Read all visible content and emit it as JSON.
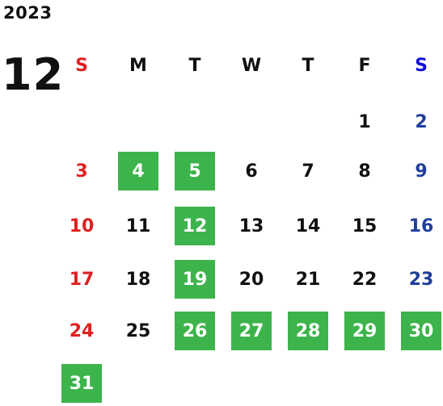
{
  "calendar": {
    "year": "2023",
    "month": "12",
    "weekday_headers": [
      "S",
      "M",
      "T",
      "W",
      "T",
      "F",
      "S"
    ],
    "highlight_color": "#3cb44b",
    "sunday_color": "#e02020",
    "saturday_color": "#1f3f9a",
    "weeks": [
      [
        null,
        null,
        null,
        null,
        null,
        {
          "day": "1",
          "hl": false
        },
        {
          "day": "2",
          "hl": false
        }
      ],
      [
        {
          "day": "3",
          "hl": false
        },
        {
          "day": "4",
          "hl": true
        },
        {
          "day": "5",
          "hl": true
        },
        {
          "day": "6",
          "hl": false
        },
        {
          "day": "7",
          "hl": false
        },
        {
          "day": "8",
          "hl": false
        },
        {
          "day": "9",
          "hl": false
        }
      ],
      [
        {
          "day": "10",
          "hl": false
        },
        {
          "day": "11",
          "hl": false
        },
        {
          "day": "12",
          "hl": true
        },
        {
          "day": "13",
          "hl": false
        },
        {
          "day": "14",
          "hl": false
        },
        {
          "day": "15",
          "hl": false
        },
        {
          "day": "16",
          "hl": false
        }
      ],
      [
        {
          "day": "17",
          "hl": false
        },
        {
          "day": "18",
          "hl": false
        },
        {
          "day": "19",
          "hl": true
        },
        {
          "day": "20",
          "hl": false
        },
        {
          "day": "21",
          "hl": false
        },
        {
          "day": "22",
          "hl": false
        },
        {
          "day": "23",
          "hl": false
        }
      ],
      [
        {
          "day": "24",
          "hl": false
        },
        {
          "day": "25",
          "hl": false
        },
        {
          "day": "26",
          "hl": true
        },
        {
          "day": "27",
          "hl": true
        },
        {
          "day": "28",
          "hl": true
        },
        {
          "day": "29",
          "hl": true
        },
        {
          "day": "30",
          "hl": true
        }
      ],
      [
        {
          "day": "31",
          "hl": true
        },
        null,
        null,
        null,
        null,
        null,
        null
      ]
    ]
  }
}
